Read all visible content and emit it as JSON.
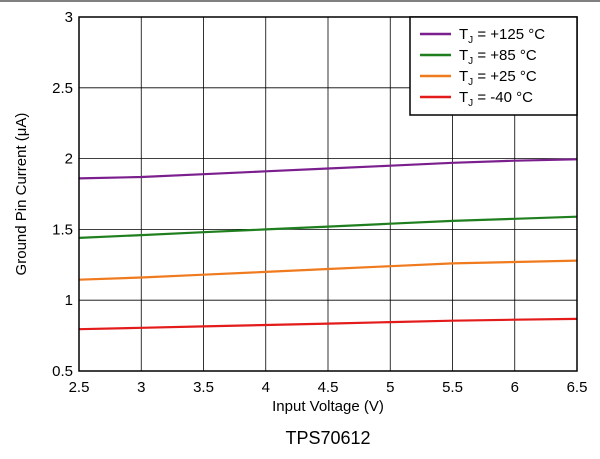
{
  "chart_data": {
    "type": "line",
    "title": "",
    "caption": "TPS70612",
    "xlabel": "Input Voltage (V)",
    "ylabel": "Ground Pin Current (μA)",
    "xlim": [
      2.5,
      6.5
    ],
    "ylim": [
      0.5,
      3
    ],
    "x_ticks": [
      "2.5",
      "3",
      "3.5",
      "4",
      "4.5",
      "5",
      "5.5",
      "6",
      "6.5"
    ],
    "y_ticks": [
      "0.5",
      "1",
      "1.5",
      "2",
      "2.5",
      "3"
    ],
    "grid": true,
    "legend_position": "top-right",
    "x": [
      2.5,
      3,
      3.5,
      4,
      4.5,
      5,
      5.5,
      6,
      6.5
    ],
    "series": [
      {
        "name_main": "T",
        "name_sub": "J",
        "name_rest": " = +125 °C",
        "color": "#7b1f8e",
        "values": [
          1.86,
          1.87,
          1.89,
          1.91,
          1.93,
          1.95,
          1.97,
          1.985,
          1.995
        ]
      },
      {
        "name_main": "T",
        "name_sub": "J",
        "name_rest": " = +85 °C",
        "color": "#1f7f1f",
        "values": [
          1.44,
          1.46,
          1.48,
          1.5,
          1.52,
          1.54,
          1.56,
          1.575,
          1.59
        ]
      },
      {
        "name_main": "T",
        "name_sub": "J",
        "name_rest": " = +25 °C",
        "color": "#f07a1e",
        "values": [
          1.145,
          1.16,
          1.18,
          1.2,
          1.22,
          1.24,
          1.26,
          1.27,
          1.28
        ]
      },
      {
        "name_main": "T",
        "name_sub": "J",
        "name_rest": " = -40 °C",
        "color": "#e31b1b",
        "values": [
          0.795,
          0.805,
          0.815,
          0.825,
          0.835,
          0.845,
          0.855,
          0.862,
          0.868
        ]
      }
    ]
  }
}
